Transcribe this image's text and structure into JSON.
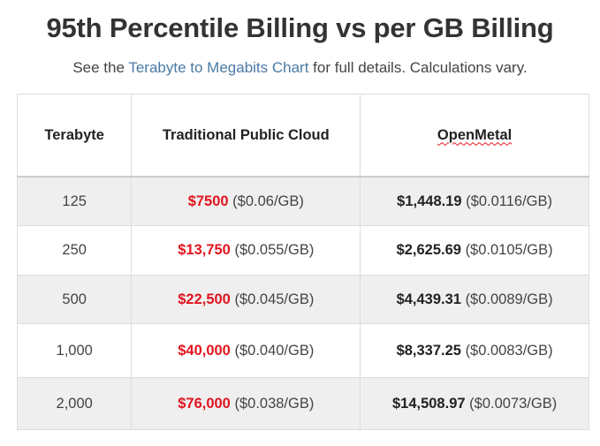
{
  "title": "95th Percentile Billing vs per GB Billing",
  "subtitle": {
    "prefix": "See the ",
    "link_text": "Terabyte to Megabits Chart",
    "suffix": " for full details. Calculations vary."
  },
  "table": {
    "headers": [
      "Terabyte",
      "Traditional Public Cloud",
      "OpenMetal"
    ],
    "rows": [
      {
        "terabyte": "125",
        "cloud_price": "$7500",
        "cloud_rate": "($0.06/GB)",
        "openmetal_price": "$1,448.19",
        "openmetal_rate": "($0.0116/GB)"
      },
      {
        "terabyte": "250",
        "cloud_price": "$13,750",
        "cloud_rate": "($0.055/GB)",
        "openmetal_price": "$2,625.69",
        "openmetal_rate": "($0.0105/GB)"
      },
      {
        "terabyte": "500",
        "cloud_price": "$22,500",
        "cloud_rate": "($0.045/GB)",
        "openmetal_price": "$4,439.31",
        "openmetal_rate": "($0.0089/GB)"
      },
      {
        "terabyte": "1,000",
        "cloud_price": "$40,000",
        "cloud_rate": "($0.040/GB)",
        "openmetal_price": "$8,337.25",
        "openmetal_rate": "($0.0083/GB)"
      },
      {
        "terabyte": "2,000",
        "cloud_price": "$76,000",
        "cloud_rate": "($0.038/GB)",
        "openmetal_price": "$14,508.97",
        "openmetal_rate": "($0.0073/GB)"
      }
    ]
  },
  "colors": {
    "cloud_price": "#e1141e",
    "link": "#4a7aa5",
    "row_stripe": "#efefef"
  }
}
